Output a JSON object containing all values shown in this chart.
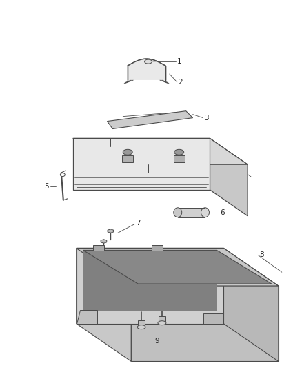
{
  "bg_color": "#ffffff",
  "line_color": "#4a4a4a",
  "fig_width": 4.38,
  "fig_height": 5.33,
  "dpi": 100,
  "label_fontsize": 7.5,
  "label_color": "#222222"
}
